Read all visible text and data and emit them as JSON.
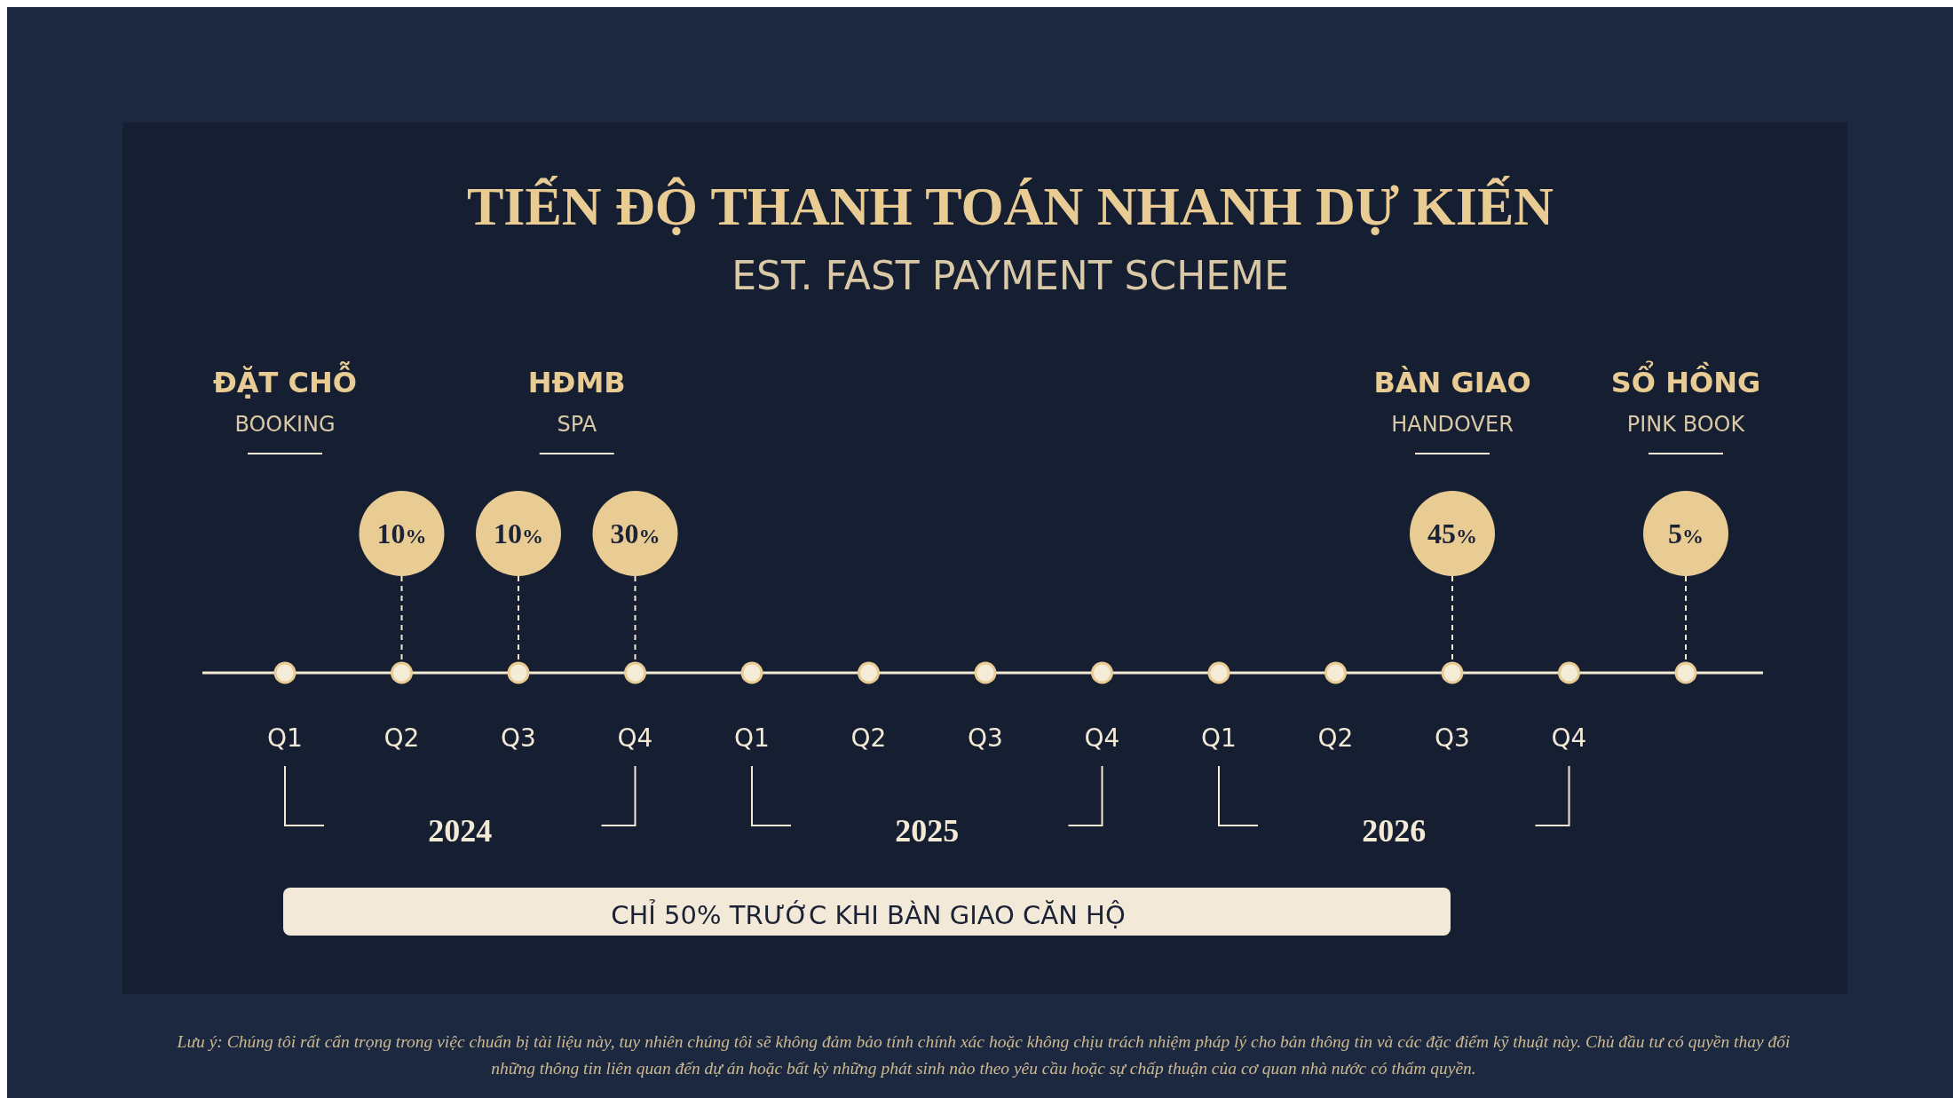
{
  "chart_data": {
    "type": "other",
    "title": "TIẾN ĐỘ THANH TOÁN NHANH DỰ KIẾN",
    "subtitle": "EST. FAST PAYMENT SCHEME",
    "categories": [
      "Q1",
      "Q2",
      "Q3",
      "Q4",
      "Q1",
      "Q2",
      "Q3",
      "Q4",
      "Q1",
      "Q2",
      "Q3",
      "Q4",
      null
    ],
    "values": [
      null,
      10,
      10,
      30,
      null,
      null,
      null,
      null,
      null,
      null,
      45,
      null,
      5
    ],
    "value_labels": [
      null,
      "10%",
      "10%",
      "30%",
      null,
      null,
      null,
      null,
      null,
      null,
      "45%",
      null,
      "5%"
    ],
    "color": "#e9cc94",
    "annotations": [
      "ĐẶT CHỖ",
      "BOOKING",
      "HĐMB",
      "SPA",
      "BÀN GIAO",
      "HANDOVER",
      "SỔ HỒNG",
      "PINK BOOK",
      "2024",
      "2025",
      "2026",
      "CHỈ 50% TRƯỚC KHI BÀN GIAO CĂN HỘ",
      "Lưu ý: Chúng tôi rất cẩn trọng trong việc chuẩn bị tài liệu này, tuy nhiên chúng tôi sẽ không đảm bảo tính chính xác hoặc không chịu trách nhiệm pháp lý cho bản thông tin và các đặc điểm kỹ thuật này. Chủ đầu tư có quyền thay đổi",
      "những thông tin liên quan đến dự án hoặc bất kỳ những phát sinh nào theo yêu cầu hoặc sự chấp thuận của cơ quan nhà nước có thẩm quyền."
    ]
  }
}
